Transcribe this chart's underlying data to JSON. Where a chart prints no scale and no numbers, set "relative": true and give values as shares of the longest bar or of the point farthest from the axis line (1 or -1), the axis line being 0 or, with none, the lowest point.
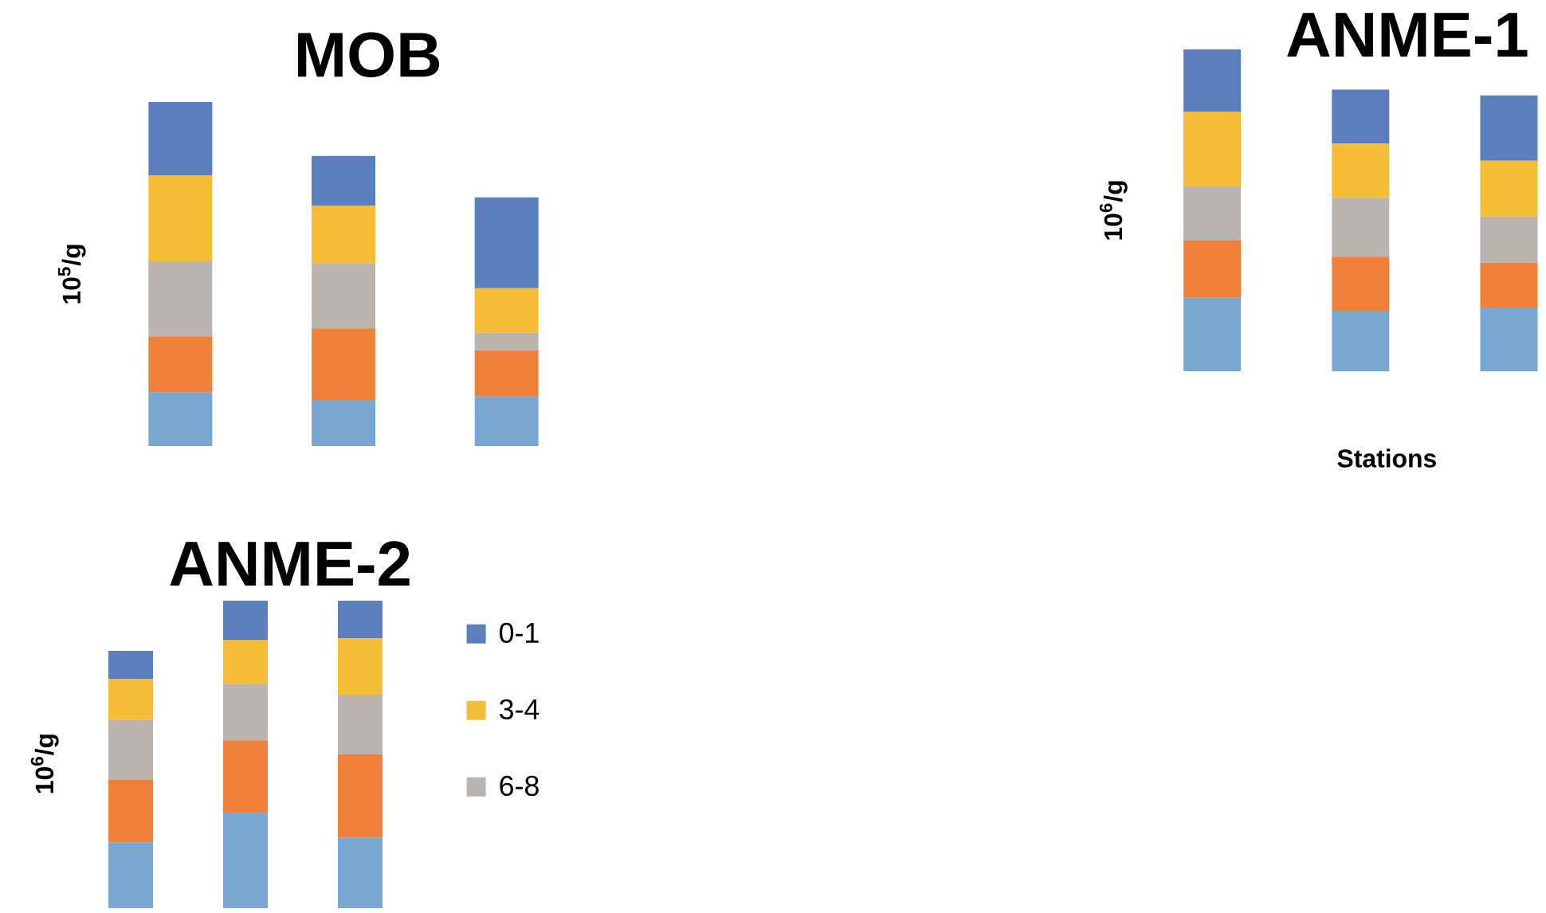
{
  "chart_data": [
    {
      "type": "bar",
      "title": "MOB",
      "ylabel": "10$^{5}$/g",
      "stacked": true,
      "relative": true,
      "categories": [
        null,
        null,
        null
      ],
      "series": [
        {
          "color": "#78a8d2",
          "values": [
            0.157,
            0.134,
            0.144
          ]
        },
        {
          "color": "#ee8038",
          "values": [
            0.162,
            0.208,
            0.134
          ]
        },
        {
          "color": "#bab4b0",
          "values": [
            0.218,
            0.19,
            0.051
          ]
        },
        {
          "color": "#f6bc35",
          "values": [
            0.25,
            0.167,
            0.13
          ]
        },
        {
          "color": "#5a7dbd",
          "values": [
            0.213,
            0.144,
            0.264
          ]
        }
      ]
    },
    {
      "type": "bar",
      "title": "ANME-1",
      "ylabel": "10$^{6}$/g",
      "xlabel": "Stations",
      "stacked": true,
      "relative": true,
      "categories": [
        null,
        null,
        null
      ],
      "series": [
        {
          "color": "#78a8d2",
          "values": [
            0.228,
            0.188,
            0.198
          ]
        },
        {
          "color": "#ee8038",
          "values": [
            0.178,
            0.168,
            0.139
          ]
        },
        {
          "color": "#bab4b0",
          "values": [
            0.168,
            0.183,
            0.144
          ]
        },
        {
          "color": "#f6bc35",
          "values": [
            0.233,
            0.168,
            0.173
          ]
        },
        {
          "color": "#5a7dbd",
          "values": [
            0.193,
            0.168,
            0.203
          ]
        }
      ]
    },
    {
      "type": "bar",
      "title": "ANME-2",
      "ylabel": "10$^{6}$/g",
      "stacked": true,
      "relative": true,
      "legend": "right",
      "categories": [
        null,
        null,
        null
      ],
      "series": [
        {
          "color": "#78a8d2",
          "values": [
            0.214,
            0.311,
            0.23
          ]
        },
        {
          "color": "#ee8038",
          "values": [
            0.204,
            0.235,
            0.27
          ]
        },
        {
          "name": "6-8",
          "color": "#bab4b0",
          "values": [
            0.194,
            0.184,
            0.194
          ]
        },
        {
          "name": "3-4",
          "color": "#f6bc35",
          "values": [
            0.133,
            0.143,
            0.184
          ]
        },
        {
          "name": "0-1",
          "color": "#5a7dbd",
          "values": [
            0.092,
            0.127,
            0.122
          ]
        }
      ]
    }
  ]
}
